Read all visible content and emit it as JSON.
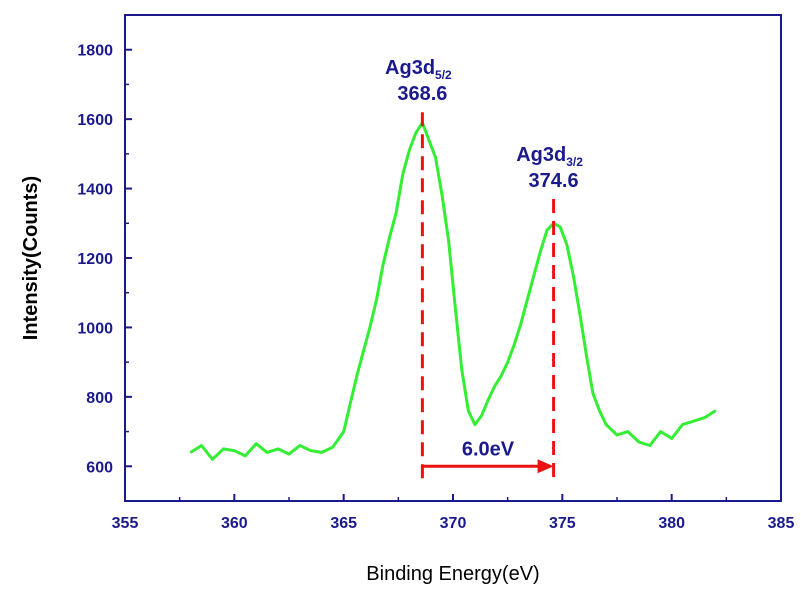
{
  "chart_data": {
    "type": "line",
    "xlabel": "Binding Energy(eV)",
    "ylabel": "Intensity(Counts)",
    "xlim": [
      355,
      385
    ],
    "ylim": [
      500,
      1900
    ],
    "x_ticks": [
      "355",
      "360",
      "365",
      "370",
      "375",
      "380",
      "385"
    ],
    "y_ticks": [
      "600",
      "800",
      "1000",
      "1200",
      "1400",
      "1600",
      "1800"
    ],
    "grid": false,
    "series": [
      {
        "color": "#33ee33",
        "x": [
          358.0,
          358.5,
          359.0,
          359.5,
          360.0,
          360.5,
          361.0,
          361.5,
          362.0,
          362.5,
          363.0,
          363.5,
          364.0,
          364.5,
          365.0,
          365.3,
          365.6,
          365.9,
          366.2,
          366.5,
          366.8,
          367.1,
          367.4,
          367.7,
          368.0,
          368.3,
          368.6,
          368.9,
          369.2,
          369.5,
          369.8,
          370.1,
          370.4,
          370.7,
          371.0,
          371.3,
          371.6,
          371.9,
          372.2,
          372.5,
          372.8,
          373.1,
          373.4,
          373.7,
          374.0,
          374.3,
          374.6,
          374.9,
          375.2,
          375.5,
          375.8,
          376.1,
          376.4,
          376.7,
          377.0,
          377.5,
          378.0,
          378.5,
          379.0,
          379.5,
          380.0,
          380.5,
          381.0,
          381.5,
          382.0
        ],
        "y": [
          640,
          660,
          620,
          650,
          645,
          630,
          665,
          640,
          650,
          635,
          660,
          645,
          640,
          655,
          700,
          780,
          860,
          930,
          1000,
          1080,
          1180,
          1260,
          1330,
          1440,
          1510,
          1560,
          1590,
          1540,
          1490,
          1380,
          1250,
          1060,
          880,
          760,
          720,
          745,
          790,
          830,
          860,
          900,
          950,
          1010,
          1080,
          1150,
          1220,
          1280,
          1300,
          1290,
          1240,
          1150,
          1040,
          920,
          810,
          760,
          720,
          690,
          700,
          670,
          660,
          700,
          680,
          720,
          730,
          740,
          760
        ]
      }
    ],
    "annotations": [
      {
        "label_main": "Ag3d",
        "label_sub": "5/2",
        "value_text": "368.6",
        "x": 368.6,
        "line_top": 1620
      },
      {
        "label_main": "Ag3d",
        "label_sub": "3/2",
        "value_text": "374.6",
        "x": 374.6,
        "line_top": 1370
      }
    ],
    "arrow": {
      "from_x": 368.6,
      "to_x": 374.6,
      "y": 600,
      "label": "6.0eV",
      "color": "#ee1111"
    },
    "dashed_line_color": "#ee1111",
    "axis_color": "#1a1a8c"
  }
}
